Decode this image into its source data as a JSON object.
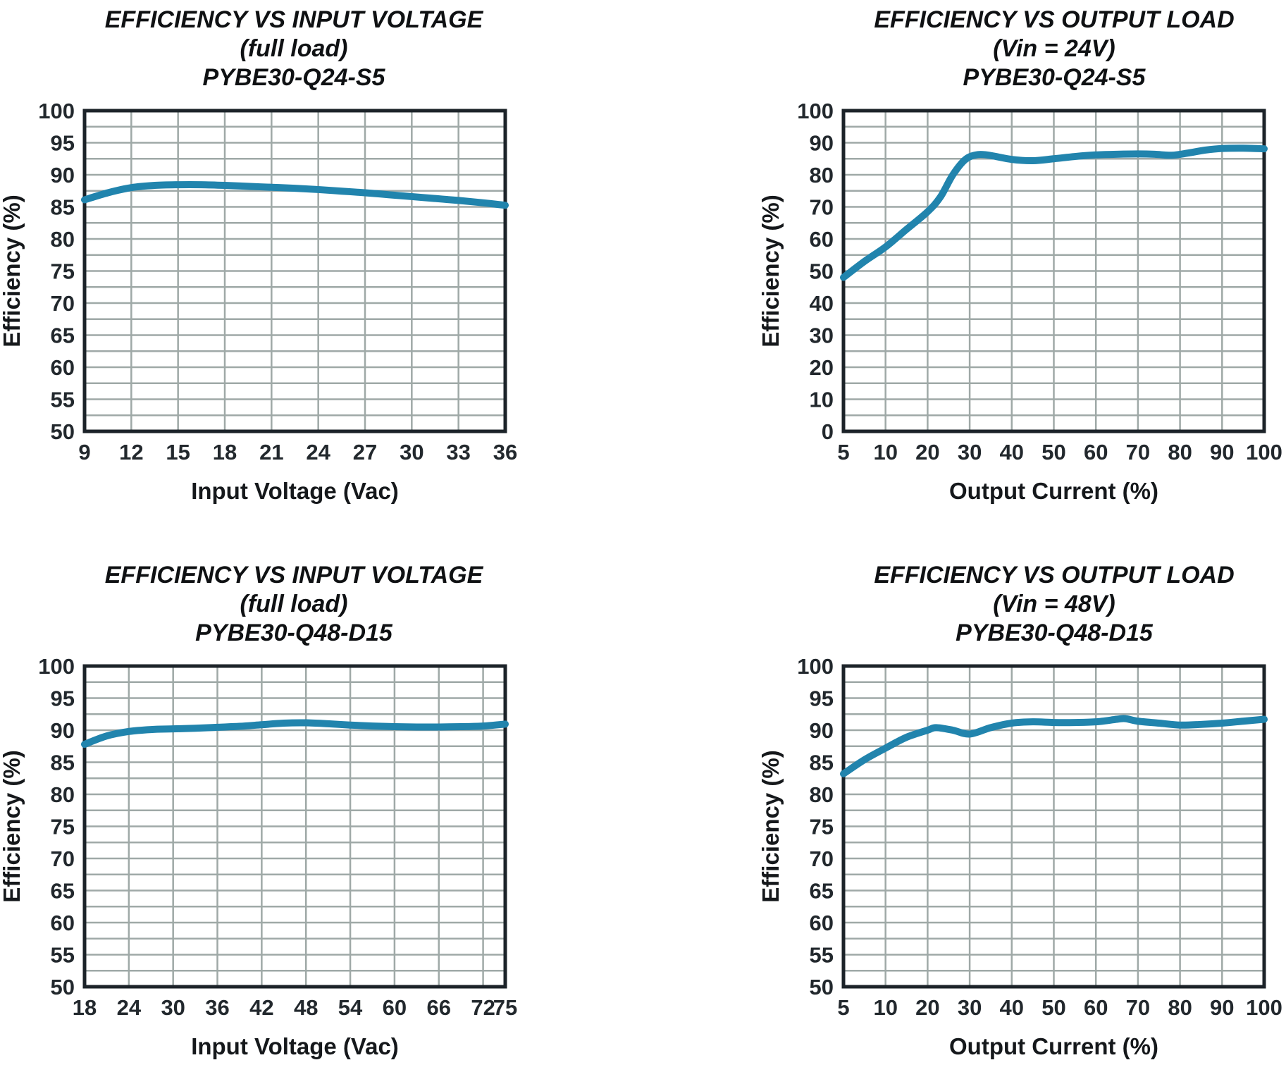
{
  "page": {
    "background": "#ffffff"
  },
  "styles": {
    "curve_color": "#2184ad",
    "grid_color": "#9fa9a7",
    "border_color": "#1c2329",
    "tick_text_color": "#22282d",
    "title_text_color": "#0f1113"
  },
  "chart_data": [
    {
      "type": "line",
      "title_lines": [
        "EFFICIENCY VS INPUT VOLTAGE",
        "(full load)",
        "PYBE30-Q24-S5"
      ],
      "xlabel": "Input Voltage (Vac)",
      "ylabel": "Efficiency (%)",
      "x_type": "linear",
      "x_min": 9,
      "x_max": 36,
      "x_ticks": [
        9,
        12,
        15,
        18,
        21,
        24,
        27,
        30,
        33,
        36
      ],
      "y_min": 50,
      "y_max": 100,
      "y_label_step": 5,
      "y_grid_step": 2.5,
      "grid": true,
      "legend": "none",
      "points": [
        [
          9,
          86.1
        ],
        [
          10.5,
          87.2
        ],
        [
          12,
          88.0
        ],
        [
          13.5,
          88.35
        ],
        [
          15,
          88.45
        ],
        [
          16.5,
          88.45
        ],
        [
          18,
          88.35
        ],
        [
          19.5,
          88.2
        ],
        [
          21,
          88.05
        ],
        [
          22.5,
          87.9
        ],
        [
          24,
          87.7
        ],
        [
          25.5,
          87.45
        ],
        [
          27,
          87.2
        ],
        [
          28.5,
          86.9
        ],
        [
          30,
          86.6
        ],
        [
          31.5,
          86.3
        ],
        [
          33,
          86.0
        ],
        [
          34.5,
          85.65
        ],
        [
          36,
          85.25
        ]
      ]
    },
    {
      "type": "line",
      "title_lines": [
        "EFFICIENCY VS OUTPUT LOAD",
        "(Vin = 24V)",
        "PYBE30-Q24-S5"
      ],
      "xlabel": "Output Current (%)",
      "ylabel": "Efficiency (%)",
      "x_type": "category",
      "x_ticks": [
        5,
        10,
        20,
        30,
        40,
        50,
        60,
        70,
        80,
        90,
        100
      ],
      "y_min": 0,
      "y_max": 100,
      "y_label_step": 10,
      "y_grid_step": 5,
      "grid": true,
      "legend": "none",
      "points": [
        [
          5,
          48.0
        ],
        [
          7.5,
          53.0
        ],
        [
          10,
          57.5
        ],
        [
          15,
          63.0
        ],
        [
          20,
          68.5
        ],
        [
          23,
          73.0
        ],
        [
          26,
          80.0
        ],
        [
          29,
          84.8
        ],
        [
          32,
          86.3
        ],
        [
          35,
          86.0
        ],
        [
          40,
          84.8
        ],
        [
          45,
          84.4
        ],
        [
          50,
          85.0
        ],
        [
          55,
          85.7
        ],
        [
          60,
          86.2
        ],
        [
          65,
          86.4
        ],
        [
          70,
          86.5
        ],
        [
          74,
          86.4
        ],
        [
          78,
          86.1
        ],
        [
          82,
          86.8
        ],
        [
          86,
          87.7
        ],
        [
          90,
          88.2
        ],
        [
          95,
          88.3
        ],
        [
          100,
          88.1
        ]
      ]
    },
    {
      "type": "line",
      "title_lines": [
        "EFFICIENCY VS INPUT VOLTAGE",
        "(full load)",
        "PYBE30-Q48-D15"
      ],
      "xlabel": "Input Voltage (Vac)",
      "ylabel": "Efficiency (%)",
      "x_type": "linear",
      "x_min": 18,
      "x_max": 75,
      "x_ticks": [
        18,
        24,
        30,
        36,
        42,
        48,
        54,
        60,
        66,
        72,
        75
      ],
      "y_min": 50,
      "y_max": 100,
      "y_label_step": 5,
      "y_grid_step": 2.5,
      "grid": true,
      "legend": "none",
      "points": [
        [
          18,
          87.8
        ],
        [
          21,
          89.1
        ],
        [
          24,
          89.8
        ],
        [
          27,
          90.1
        ],
        [
          30,
          90.2
        ],
        [
          33,
          90.3
        ],
        [
          36,
          90.45
        ],
        [
          39,
          90.6
        ],
        [
          42,
          90.85
        ],
        [
          45,
          91.1
        ],
        [
          48,
          91.15
        ],
        [
          51,
          91.0
        ],
        [
          54,
          90.8
        ],
        [
          57,
          90.65
        ],
        [
          60,
          90.55
        ],
        [
          63,
          90.5
        ],
        [
          66,
          90.5
        ],
        [
          69,
          90.55
        ],
        [
          72,
          90.65
        ],
        [
          75,
          90.95
        ]
      ]
    },
    {
      "type": "line",
      "title_lines": [
        "EFFICIENCY VS OUTPUT LOAD",
        "(Vin = 48V)",
        "PYBE30-Q48-D15"
      ],
      "xlabel": "Output Current (%)",
      "ylabel": "Efficiency (%)",
      "x_type": "category",
      "x_ticks": [
        5,
        10,
        20,
        30,
        40,
        50,
        60,
        70,
        80,
        90,
        100
      ],
      "y_min": 50,
      "y_max": 100,
      "y_label_step": 5,
      "y_grid_step": 2.5,
      "grid": true,
      "legend": "none",
      "points": [
        [
          5,
          83.2
        ],
        [
          7.5,
          85.4
        ],
        [
          10,
          87.2
        ],
        [
          15,
          88.9
        ],
        [
          20,
          90.0
        ],
        [
          22,
          90.4
        ],
        [
          26,
          90.0
        ],
        [
          30,
          89.4
        ],
        [
          35,
          90.4
        ],
        [
          40,
          91.1
        ],
        [
          45,
          91.3
        ],
        [
          50,
          91.2
        ],
        [
          55,
          91.2
        ],
        [
          60,
          91.3
        ],
        [
          65,
          91.7
        ],
        [
          67,
          91.8
        ],
        [
          70,
          91.4
        ],
        [
          75,
          91.1
        ],
        [
          80,
          90.8
        ],
        [
          85,
          90.9
        ],
        [
          90,
          91.1
        ],
        [
          95,
          91.4
        ],
        [
          100,
          91.7
        ]
      ]
    }
  ]
}
